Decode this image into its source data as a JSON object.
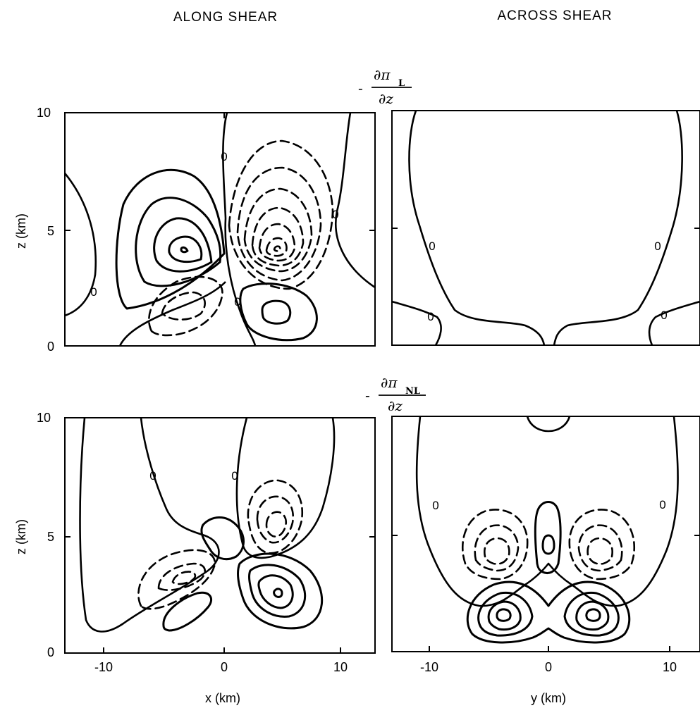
{
  "titles": {
    "along": "ALONG SHEAR",
    "across": "ACROSS SHEAR"
  },
  "equations": {
    "top": {
      "sign": "-",
      "numerator": "∂π",
      "subscript": "L",
      "denominator": "∂z"
    },
    "bottom": {
      "sign": "-",
      "numerator": "∂π",
      "subscript": "NL",
      "denominator": "∂z"
    }
  },
  "axes": {
    "z_label": "z (km)",
    "x_label": "x (km)",
    "y_label": "y (km)",
    "z_ticks": [
      "10",
      "5",
      "0"
    ],
    "x_ticks": [
      "-10",
      "0",
      "10"
    ],
    "y_ticks": [
      "-10",
      "0",
      "10"
    ]
  },
  "contour_zero_label": "0"
}
